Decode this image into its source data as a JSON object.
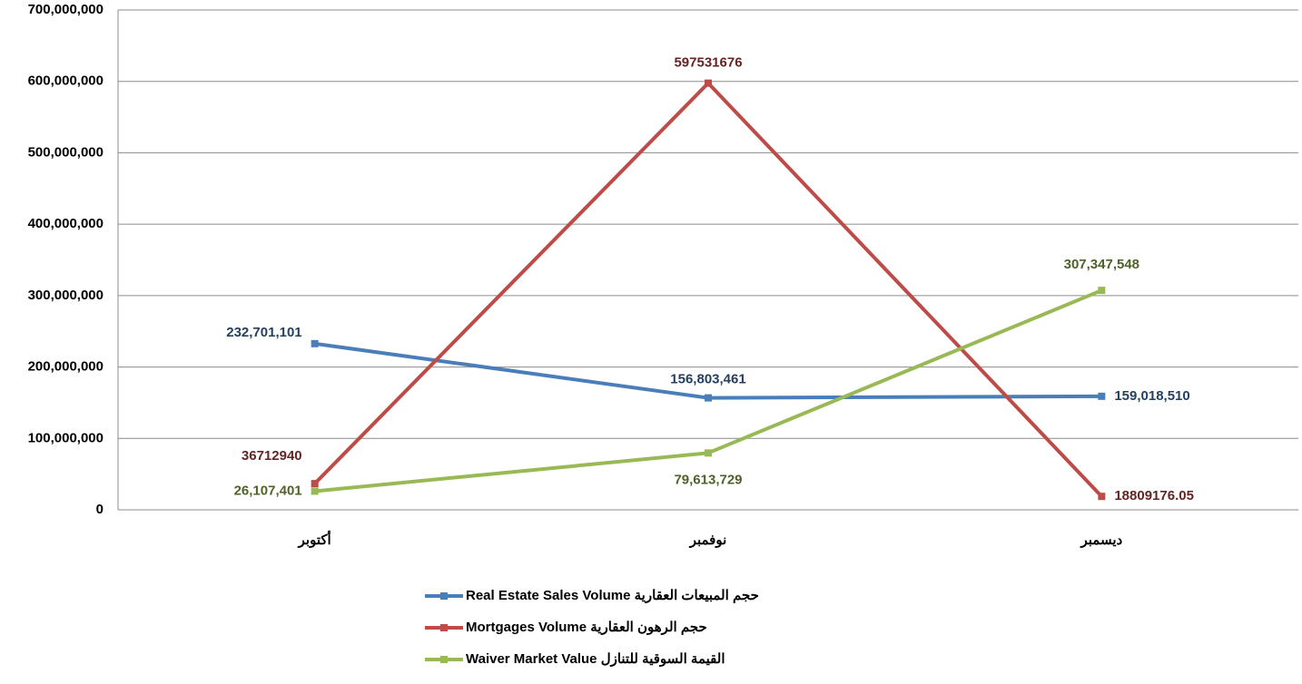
{
  "chart_data": {
    "type": "line",
    "categories": [
      "أكتوبر",
      "نوفمبر",
      "ديسمبر"
    ],
    "series": [
      {
        "name": "Real Estate Sales Volume حجم المبيعات العقارية",
        "color": "#4a7ebb",
        "values": [
          232701101,
          156803461,
          159018510
        ],
        "value_labels": [
          "232,701,101",
          "156,803,461",
          "159,018,510"
        ]
      },
      {
        "name": "Mortgages Volume  حجم الرهون العقارية",
        "color": "#be4b48",
        "values": [
          36712940,
          597531676,
          18809176.05
        ]
      },
      {
        "name": "Waiver Market Value  القيمة السوقية للتنازل",
        "color": "#98b954",
        "values": [
          26107401,
          79613729,
          307347548
        ],
        "value_labels": [
          "26,107,401",
          "79,613,729",
          "307,347,548"
        ]
      }
    ],
    "ylim": [
      0,
      700000000
    ],
    "yticks": [
      0,
      {
        "value": 100000000,
        "label": "100,000,000"
      },
      {
        "value": 200000000,
        "label": "200,000,000"
      },
      {
        "value": 300000000,
        "label": "300,000,000"
      },
      {
        "value": 400000000,
        "label": "400,000,000"
      },
      {
        "value": 500000000,
        "label": "500,000,000"
      },
      {
        "value": 600000000,
        "label": "600,000,000"
      },
      {
        "value": 700000000,
        "label": "700,000,000"
      }
    ],
    "grid": true
  }
}
